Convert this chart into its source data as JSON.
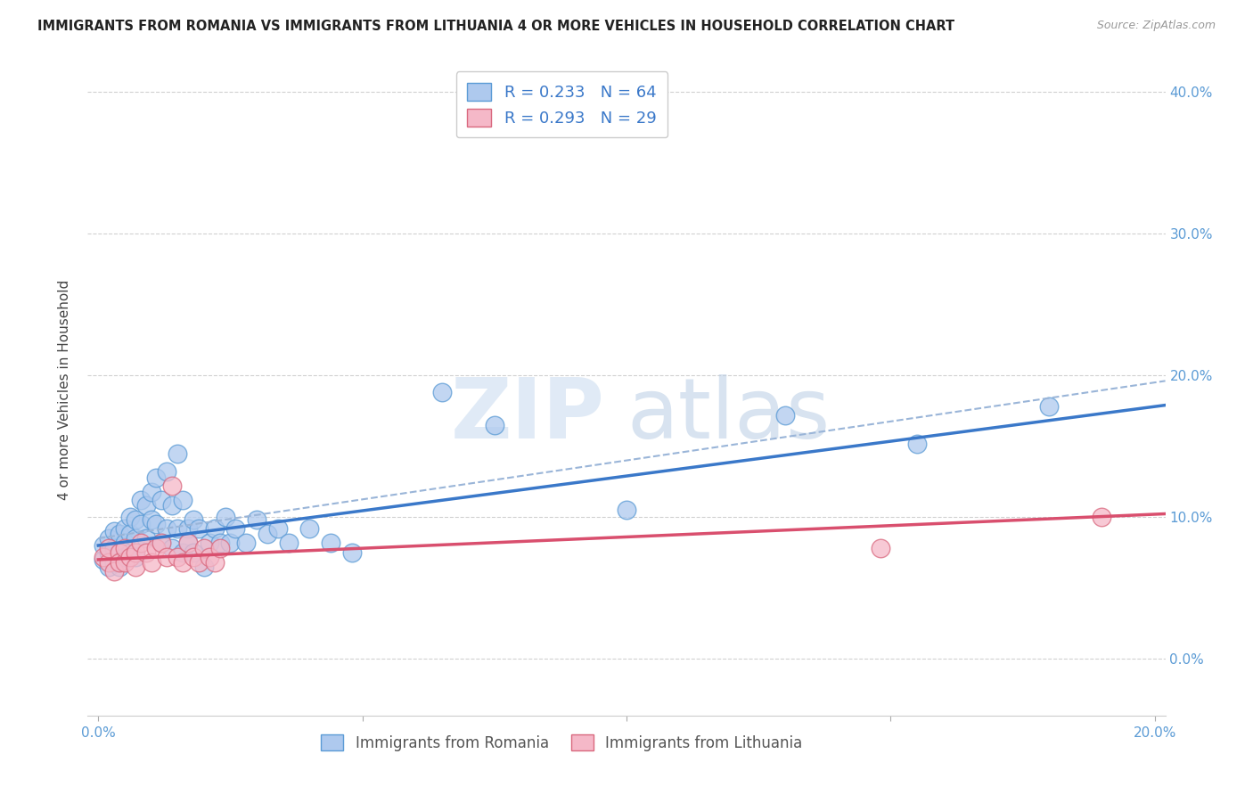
{
  "title": "IMMIGRANTS FROM ROMANIA VS IMMIGRANTS FROM LITHUANIA 4 OR MORE VEHICLES IN HOUSEHOLD CORRELATION CHART",
  "source": "Source: ZipAtlas.com",
  "ylabel": "4 or more Vehicles in Household",
  "xlim": [
    -0.002,
    0.202
  ],
  "ylim": [
    -0.04,
    0.42
  ],
  "xticks": [
    0.0,
    0.05,
    0.1,
    0.15,
    0.2
  ],
  "xticklabels": [
    "0.0%",
    "",
    "",
    "",
    "20.0%"
  ],
  "yticks": [
    0.0,
    0.1,
    0.2,
    0.3,
    0.4
  ],
  "yticklabels_right": [
    "0.0%",
    "10.0%",
    "20.0%",
    "30.0%",
    "40.0%"
  ],
  "romania_R": 0.233,
  "romania_N": 64,
  "lithuania_R": 0.293,
  "lithuania_N": 29,
  "romania_color": "#aec9ee",
  "romania_edge_color": "#5b9bd5",
  "lithuania_color": "#f5b8c8",
  "lithuania_edge_color": "#d9687e",
  "trend_romania_color": "#3a78c9",
  "trend_lithuania_color": "#d94f6e",
  "ci_color": "#9ab5d8",
  "watermark_zip": "ZIP",
  "watermark_atlas": "atlas",
  "romania_x": [
    0.001,
    0.001,
    0.002,
    0.002,
    0.002,
    0.003,
    0.003,
    0.003,
    0.004,
    0.004,
    0.004,
    0.005,
    0.005,
    0.005,
    0.006,
    0.006,
    0.006,
    0.007,
    0.007,
    0.007,
    0.008,
    0.008,
    0.009,
    0.009,
    0.01,
    0.01,
    0.011,
    0.011,
    0.012,
    0.012,
    0.013,
    0.013,
    0.014,
    0.014,
    0.015,
    0.015,
    0.016,
    0.016,
    0.017,
    0.017,
    0.018,
    0.018,
    0.019,
    0.02,
    0.021,
    0.022,
    0.023,
    0.024,
    0.025,
    0.026,
    0.028,
    0.03,
    0.032,
    0.034,
    0.036,
    0.04,
    0.044,
    0.048,
    0.065,
    0.075,
    0.1,
    0.13,
    0.155,
    0.18
  ],
  "romania_y": [
    0.08,
    0.07,
    0.085,
    0.075,
    0.065,
    0.09,
    0.078,
    0.068,
    0.088,
    0.075,
    0.065,
    0.092,
    0.082,
    0.072,
    0.1,
    0.088,
    0.075,
    0.098,
    0.085,
    0.072,
    0.112,
    0.095,
    0.108,
    0.085,
    0.118,
    0.098,
    0.128,
    0.095,
    0.112,
    0.082,
    0.132,
    0.092,
    0.108,
    0.078,
    0.145,
    0.092,
    0.112,
    0.075,
    0.092,
    0.082,
    0.098,
    0.075,
    0.092,
    0.065,
    0.082,
    0.092,
    0.082,
    0.1,
    0.082,
    0.092,
    0.082,
    0.098,
    0.088,
    0.092,
    0.082,
    0.092,
    0.082,
    0.075,
    0.188,
    0.165,
    0.105,
    0.172,
    0.152,
    0.178
  ],
  "lithuania_x": [
    0.001,
    0.002,
    0.002,
    0.003,
    0.004,
    0.004,
    0.005,
    0.005,
    0.006,
    0.007,
    0.007,
    0.008,
    0.009,
    0.01,
    0.011,
    0.012,
    0.013,
    0.014,
    0.015,
    0.016,
    0.017,
    0.018,
    0.019,
    0.02,
    0.021,
    0.022,
    0.023,
    0.148,
    0.19
  ],
  "lithuania_y": [
    0.072,
    0.068,
    0.078,
    0.062,
    0.075,
    0.068,
    0.068,
    0.078,
    0.072,
    0.075,
    0.065,
    0.082,
    0.075,
    0.068,
    0.078,
    0.082,
    0.072,
    0.122,
    0.072,
    0.068,
    0.082,
    0.072,
    0.068,
    0.078,
    0.072,
    0.068,
    0.078,
    0.078,
    0.1
  ]
}
